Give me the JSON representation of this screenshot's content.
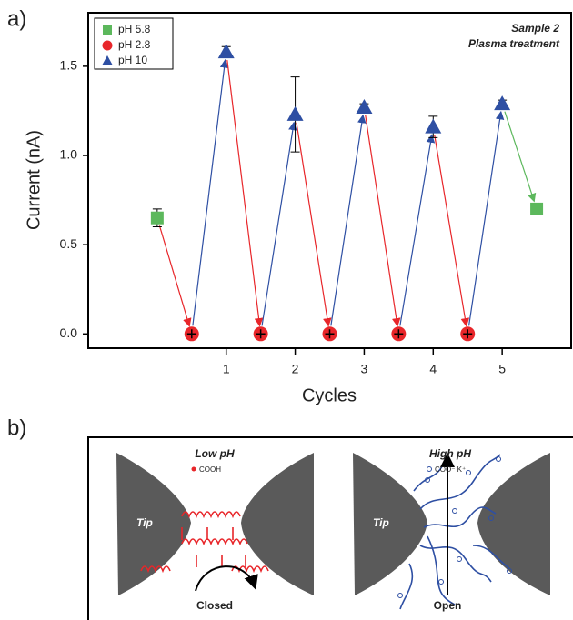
{
  "chart_data": {
    "type": "scatter",
    "panel_label": "a)",
    "y_label": "Current (nA)",
    "x_label": "Cycles",
    "annotations": [
      "Sample 2",
      "Plasma treatment"
    ],
    "xlim": [
      -1,
      6
    ],
    "xticks": [
      1,
      2,
      3,
      4,
      5
    ],
    "ylim": [
      -0.08,
      1.8
    ],
    "yticks": [
      {
        "value": 0,
        "label": "0.0"
      },
      0.5,
      {
        "value": 1,
        "label": "1.0"
      },
      1.5
    ],
    "legend": "top-left",
    "series": [
      {
        "name": "pH 5.8",
        "color": "#5cb85c",
        "marker": "square",
        "x": [
          0,
          5.5
        ],
        "values": [
          0.65,
          0.7
        ],
        "errors": [
          0.05,
          0.02
        ]
      },
      {
        "name": "pH 2.8",
        "color": "#e8262a",
        "marker": "circle",
        "x": [
          0.5,
          1.5,
          2.5,
          3.5,
          4.5
        ],
        "values": [
          0,
          0,
          0,
          0,
          0
        ],
        "errors": [
          0,
          0,
          0,
          0,
          0
        ]
      },
      {
        "name": "pH 10",
        "color": "#2e4fa3",
        "marker": "triangle",
        "x": [
          1,
          2,
          3,
          4,
          5
        ],
        "values": [
          1.58,
          1.23,
          1.27,
          1.16,
          1.29
        ],
        "errors": [
          0.03,
          0.21,
          0.02,
          0.06,
          0.02
        ]
      }
    ]
  },
  "diagram": {
    "panel_label": "b)",
    "left": {
      "title": "Low pH",
      "legend": "COOH",
      "tip": "Tip",
      "state": "Closed"
    },
    "right": {
      "title": "High pH",
      "legend": "COO⁻ K⁺",
      "tip": "Tip",
      "state": "Open"
    }
  }
}
